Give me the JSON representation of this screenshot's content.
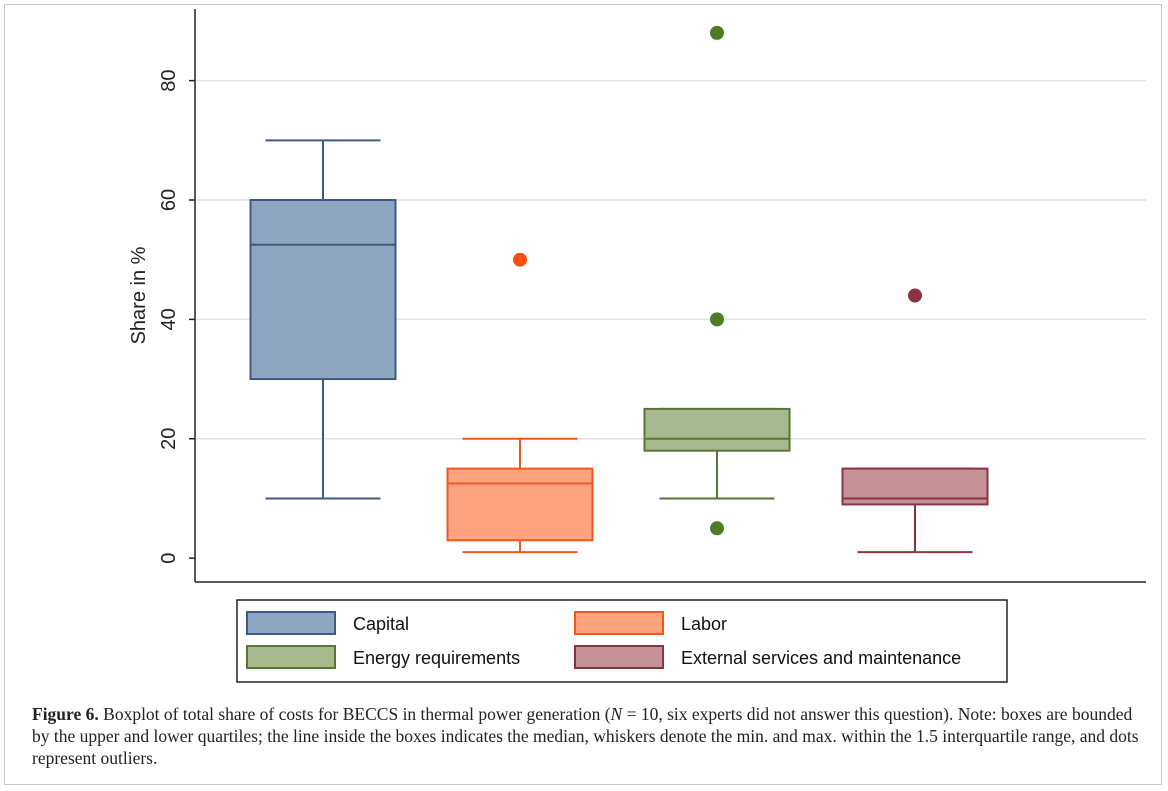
{
  "chart_data": {
    "type": "boxplot",
    "ylabel": "Share in %",
    "xlabel": "",
    "ylim": [
      -4,
      92
    ],
    "yticks": [
      0,
      20,
      40,
      60,
      80
    ],
    "grid": true,
    "legend_position": "bottom",
    "series": [
      {
        "name": "Capital",
        "color": "#8ea5bf",
        "edge": "#3b5b85",
        "q1": 30,
        "median": 52.5,
        "q3": 60,
        "whisker_low": 10,
        "whisker_high": 70,
        "outliers": []
      },
      {
        "name": "Labor",
        "color": "#fea37f",
        "edge": "#f0581f",
        "q1": 3,
        "median": 12.5,
        "q3": 15,
        "whisker_low": 1,
        "whisker_high": 20,
        "outliers": [
          50
        ]
      },
      {
        "name": "Energy requirements",
        "color": "#a6b98f",
        "edge": "#5a7634",
        "q1": 18,
        "median": 20,
        "q3": 25,
        "whisker_low": 10,
        "whisker_high": 25,
        "outliers": [
          88,
          40,
          5
        ]
      },
      {
        "name": "External services and maintenance",
        "color": "#c49197",
        "edge": "#8b3440",
        "q1": 9,
        "median": 10,
        "q3": 15,
        "whisker_low": 1,
        "whisker_high": 15,
        "outliers": [
          44
        ]
      }
    ]
  },
  "caption": {
    "label": "Figure 6.",
    "text_before_n": " Boxplot of total share of costs for BECCS in thermal power generation (",
    "n_symbol": "N",
    "n_value": " = 10, six experts did not answer this question). Note: boxes are bounded by the upper and lower quartiles; the line inside the boxes indicates the median, whiskers denote the min. and max. within the 1.5 interquartile range, and dots represent outliers."
  }
}
